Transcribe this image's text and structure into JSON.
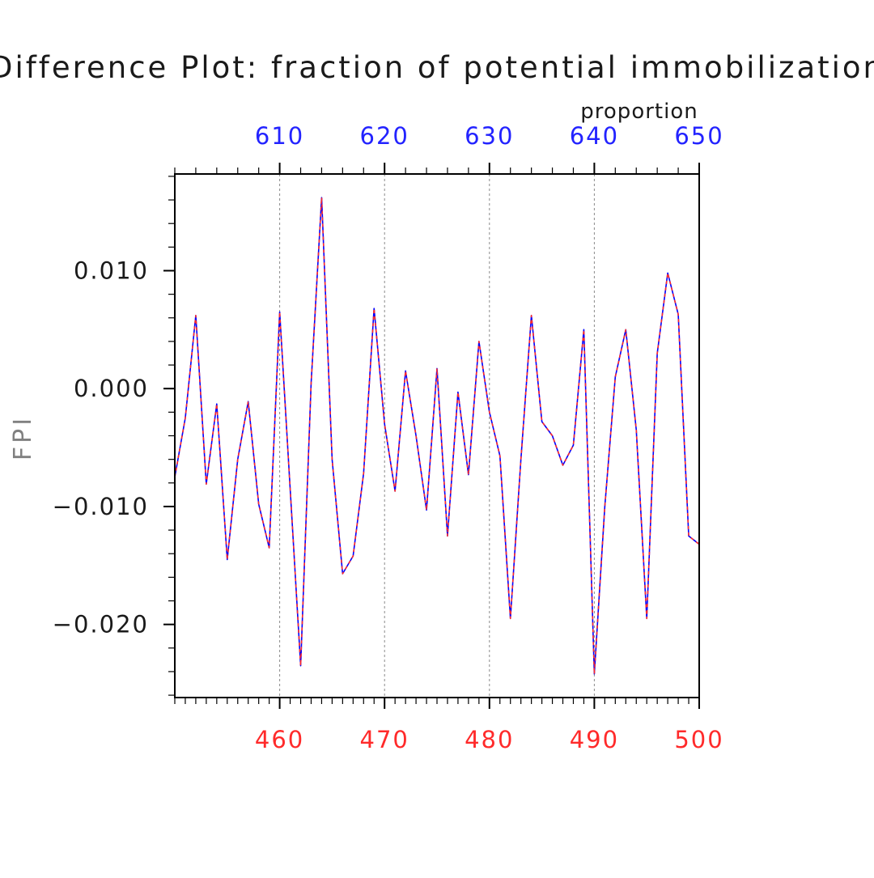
{
  "chart_data": {
    "type": "line",
    "title": "Difference Plot: fraction of potential immobilization",
    "ylabel": "FPI",
    "top_axis_unit": "proportion",
    "x_bottom": {
      "range": [
        450,
        500
      ],
      "ticks": [
        460,
        470,
        480,
        490,
        500
      ],
      "tick_labels": [
        "460",
        "470",
        "480",
        "490",
        "500"
      ],
      "minor_step": 1,
      "color": "#ff2a2a"
    },
    "x_top": {
      "range": [
        600,
        650
      ],
      "ticks": [
        610,
        620,
        630,
        640,
        650
      ],
      "tick_labels": [
        "610",
        "620",
        "630",
        "640",
        "650"
      ],
      "minor_step": 2,
      "color": "#2323ff"
    },
    "y": {
      "range": [
        -0.0262,
        0.0182
      ],
      "ticks": [
        -0.02,
        -0.01,
        0.0,
        0.01
      ],
      "tick_labels": [
        "−0.020",
        "−0.010",
        "0.000",
        "0.010"
      ],
      "minor_step": 0.002
    },
    "grid": "vertical dashed at major x ticks",
    "series": [
      {
        "color": "#0000ff",
        "style": "solid",
        "x": [
          450,
          451,
          452,
          453,
          454,
          455,
          456,
          457,
          458,
          459,
          460,
          461,
          462,
          463,
          464,
          465,
          466,
          467,
          468,
          469,
          470,
          471,
          472,
          473,
          474,
          475,
          476,
          477,
          478,
          479,
          480,
          481,
          482,
          483,
          484,
          485,
          486,
          487,
          488,
          489,
          490,
          491,
          492,
          493,
          494,
          495,
          496,
          497,
          498,
          499,
          500
        ],
        "values": [
          -0.0075,
          -0.0025,
          0.0062,
          -0.0081,
          -0.0013,
          -0.0145,
          -0.006,
          -0.0011,
          -0.0098,
          -0.0135,
          0.0065,
          -0.0085,
          -0.0235,
          0.0005,
          0.0162,
          -0.006,
          -0.0157,
          -0.0142,
          -0.0072,
          0.0068,
          -0.003,
          -0.0087,
          0.0015,
          -0.004,
          -0.0103,
          0.0017,
          -0.0125,
          -0.0003,
          -0.0073,
          0.004,
          -0.002,
          -0.0057,
          -0.0195,
          -0.006,
          0.0062,
          -0.0028,
          -0.004,
          -0.0065,
          -0.0048,
          0.005,
          -0.0242,
          -0.01,
          0.001,
          0.005,
          -0.0035,
          -0.0195,
          0.003,
          0.0098,
          0.0063,
          -0.0125,
          -0.0132
        ]
      },
      {
        "color": "#ff2a2a",
        "style": "dashed",
        "x": [
          450,
          451,
          452,
          453,
          454,
          455,
          456,
          457,
          458,
          459,
          460,
          461,
          462,
          463,
          464,
          465,
          466,
          467,
          468,
          469,
          470,
          471,
          472,
          473,
          474,
          475,
          476,
          477,
          478,
          479,
          480,
          481,
          482,
          483,
          484,
          485,
          486,
          487,
          488,
          489,
          490,
          491,
          492,
          493,
          494,
          495,
          496,
          497,
          498,
          499,
          500
        ],
        "values": [
          -0.0075,
          -0.0025,
          0.0062,
          -0.0081,
          -0.0013,
          -0.0145,
          -0.006,
          -0.0011,
          -0.0098,
          -0.0135,
          0.0065,
          -0.0085,
          -0.0235,
          0.0005,
          0.0162,
          -0.006,
          -0.0157,
          -0.0142,
          -0.0072,
          0.0068,
          -0.003,
          -0.0087,
          0.0015,
          -0.004,
          -0.0103,
          0.0017,
          -0.0125,
          -0.0003,
          -0.0073,
          0.004,
          -0.002,
          -0.0057,
          -0.0195,
          -0.006,
          0.0062,
          -0.0028,
          -0.004,
          -0.0065,
          -0.0048,
          0.005,
          -0.0242,
          -0.01,
          0.001,
          0.005,
          -0.0035,
          -0.0195,
          0.003,
          0.0098,
          0.0063,
          -0.0125,
          -0.0132
        ]
      }
    ]
  }
}
